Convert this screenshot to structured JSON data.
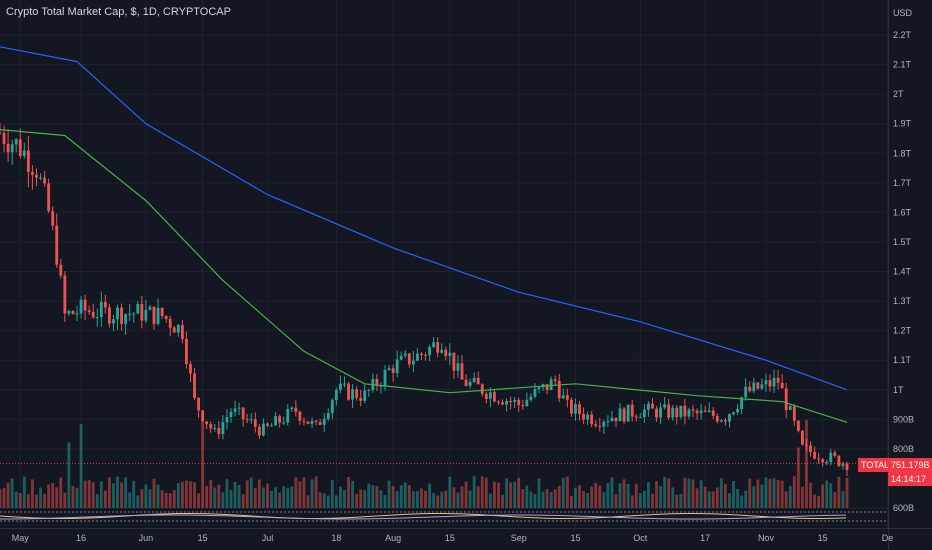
{
  "header": {
    "title": "Crypto Total Market Cap, $, 1D, CRYPTOCAP"
  },
  "price_axis": {
    "currency": "USD",
    "ticks": [
      "2.2T",
      "2.1T",
      "2T",
      "1.9T",
      "1.8T",
      "1.7T",
      "1.6T",
      "1.5T",
      "1.4T",
      "1.3T",
      "1.2T",
      "1.1T",
      "1T",
      "900B",
      "800B",
      "600B"
    ]
  },
  "time_axis": {
    "ticks": [
      "May",
      "16",
      "Jun",
      "15",
      "Jul",
      "18",
      "Aug",
      "15",
      "Sep",
      "15",
      "Oct",
      "17",
      "Nov",
      "15",
      "De"
    ]
  },
  "current": {
    "symbol": "TOTAL",
    "price": "751.179B",
    "countdown": "14:14:17"
  },
  "colors": {
    "background": "#131722",
    "up": "#26a69a",
    "down": "#ef5350",
    "ma_long": "#2962ff",
    "ma_short": "#4caf50",
    "price_tag": "#f23645"
  },
  "chart_data": {
    "type": "candlestick",
    "title": "Crypto Total Market Cap, $, 1D, CRYPTOCAP",
    "ylabel": "USD",
    "ylim": [
      0.58,
      2.25
    ],
    "y_unit": "trillion USD",
    "x_range": [
      "2022-04-26",
      "2022-11-21"
    ],
    "series": [
      {
        "name": "",
        "type": "candlestick",
        "approx_close": [
          [
            "2022-04-26",
            1.87
          ],
          [
            "2022-05-01",
            1.82
          ],
          [
            "2022-05-05",
            1.75
          ],
          [
            "2022-05-08",
            1.6
          ],
          [
            "2022-05-10",
            1.46
          ],
          [
            "2022-05-12",
            1.25
          ],
          [
            "2022-05-16",
            1.27
          ],
          [
            "2022-05-22",
            1.26
          ],
          [
            "2022-05-31",
            1.26
          ],
          [
            "2022-06-05",
            1.25
          ],
          [
            "2022-06-10",
            1.2
          ],
          [
            "2022-06-13",
            0.96
          ],
          [
            "2022-06-18",
            0.85
          ],
          [
            "2022-06-22",
            0.93
          ],
          [
            "2022-06-30",
            0.86
          ],
          [
            "2022-07-08",
            0.93
          ],
          [
            "2022-07-13",
            0.87
          ],
          [
            "2022-07-18",
            1.0
          ],
          [
            "2022-07-25",
            0.98
          ],
          [
            "2022-08-01",
            1.08
          ],
          [
            "2022-08-08",
            1.12
          ],
          [
            "2022-08-13",
            1.17
          ],
          [
            "2022-08-18",
            1.03
          ],
          [
            "2022-08-25",
            0.99
          ],
          [
            "2022-09-01",
            0.95
          ],
          [
            "2022-09-10",
            1.03
          ],
          [
            "2022-09-13",
            0.94
          ],
          [
            "2022-09-20",
            0.9
          ],
          [
            "2022-10-01",
            0.93
          ],
          [
            "2022-10-12",
            0.92
          ],
          [
            "2022-10-22",
            0.91
          ],
          [
            "2022-10-27",
            0.99
          ],
          [
            "2022-11-04",
            1.03
          ],
          [
            "2022-11-08",
            0.88
          ],
          [
            "2022-11-10",
            0.8
          ],
          [
            "2022-11-21",
            0.751
          ]
        ]
      },
      {
        "name": "",
        "type": "line",
        "color": "#2962ff",
        "values": [
          [
            "2022-04-26",
            2.16
          ],
          [
            "2022-05-15",
            2.11
          ],
          [
            "2022-06-01",
            1.9
          ],
          [
            "2022-07-01",
            1.66
          ],
          [
            "2022-08-01",
            1.48
          ],
          [
            "2022-09-01",
            1.33
          ],
          [
            "2022-10-01",
            1.23
          ],
          [
            "2022-11-01",
            1.1
          ],
          [
            "2022-11-21",
            1.0
          ]
        ]
      },
      {
        "name": "",
        "type": "line",
        "color": "#4caf50",
        "values": [
          [
            "2022-04-26",
            1.88
          ],
          [
            "2022-05-12",
            1.86
          ],
          [
            "2022-06-01",
            1.64
          ],
          [
            "2022-06-20",
            1.37
          ],
          [
            "2022-07-10",
            1.13
          ],
          [
            "2022-07-25",
            1.02
          ],
          [
            "2022-08-15",
            0.99
          ],
          [
            "2022-09-15",
            1.02
          ],
          [
            "2022-10-15",
            0.98
          ],
          [
            "2022-11-05",
            0.96
          ],
          [
            "2022-11-21",
            0.89
          ]
        ]
      }
    ]
  }
}
